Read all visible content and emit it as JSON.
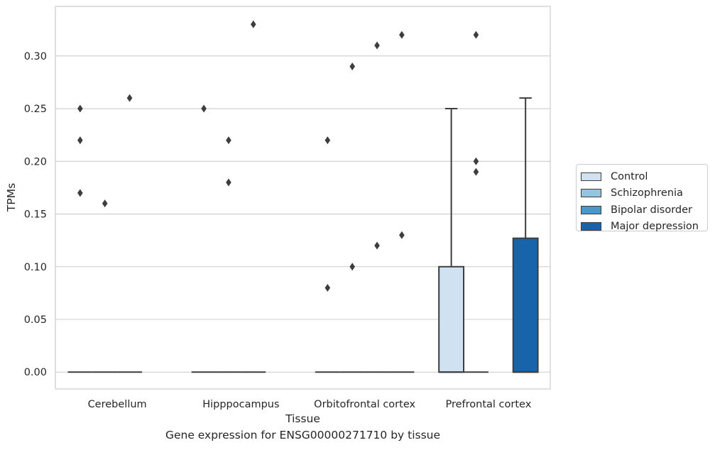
{
  "chart_data": {
    "type": "box",
    "xlabel": "Tissue",
    "ylabel": "TPMs",
    "caption": "Gene expression for ENSG00000271710 by tissue",
    "categories": [
      "Cerebellum",
      "Hipppocampus",
      "Orbitofrontal cortex",
      "Prefrontal cortex"
    ],
    "ylim": [
      -0.016,
      0.347
    ],
    "yticks": [
      0.0,
      0.05,
      0.1,
      0.15,
      0.2,
      0.25,
      0.3
    ],
    "ytick_labels": [
      "0.00",
      "0.05",
      "0.10",
      "0.15",
      "0.20",
      "0.25",
      "0.30"
    ],
    "grid": "y",
    "legend_position": "right",
    "series": [
      {
        "name": "Control",
        "color": "#d0e1f2",
        "boxes": [
          {
            "q1": 0,
            "median": 0,
            "q3": 0,
            "whisker_low": 0,
            "whisker_high": 0,
            "outliers": [
              0.25,
              0.22,
              0.17
            ]
          },
          {
            "q1": 0,
            "median": 0,
            "q3": 0,
            "whisker_low": 0,
            "whisker_high": 0,
            "outliers": [
              0.25
            ]
          },
          {
            "q1": 0,
            "median": 0,
            "q3": 0,
            "whisker_low": 0,
            "whisker_high": 0,
            "outliers": [
              0.22,
              0.08
            ]
          },
          {
            "q1": 0,
            "median": 0,
            "q3": 0.1,
            "whisker_low": 0,
            "whisker_high": 0.25,
            "outliers": []
          }
        ]
      },
      {
        "name": "Schizophrenia",
        "color": "#94c4df",
        "boxes": [
          {
            "q1": 0,
            "median": 0,
            "q3": 0,
            "whisker_low": 0,
            "whisker_high": 0,
            "outliers": [
              0.16
            ]
          },
          {
            "q1": 0,
            "median": 0,
            "q3": 0,
            "whisker_low": 0,
            "whisker_high": 0,
            "outliers": [
              0.22,
              0.18
            ]
          },
          {
            "q1": 0,
            "median": 0,
            "q3": 0,
            "whisker_low": 0,
            "whisker_high": 0,
            "outliers": [
              0.29,
              0.1
            ]
          },
          {
            "q1": 0,
            "median": 0,
            "q3": 0,
            "whisker_low": 0,
            "whisker_high": 0,
            "outliers": [
              0.32,
              0.2,
              0.19
            ]
          }
        ]
      },
      {
        "name": "Bipolar disorder",
        "color": "#4a98c9",
        "boxes": [
          {
            "q1": 0,
            "median": 0,
            "q3": 0,
            "whisker_low": 0,
            "whisker_high": 0,
            "outliers": [
              0.26
            ]
          },
          {
            "q1": 0,
            "median": 0,
            "q3": 0,
            "whisker_low": 0,
            "whisker_high": 0,
            "outliers": [
              0.33
            ]
          },
          {
            "q1": 0,
            "median": 0,
            "q3": 0,
            "whisker_low": 0,
            "whisker_high": 0,
            "outliers": [
              0.31,
              0.12
            ]
          },
          null
        ]
      },
      {
        "name": "Major depression",
        "color": "#1764ab",
        "boxes": [
          null,
          null,
          {
            "q1": 0,
            "median": 0,
            "q3": 0,
            "whisker_low": 0,
            "whisker_high": 0,
            "outliers": [
              0.32,
              0.13
            ]
          },
          {
            "q1": 0,
            "median": 0,
            "q3": 0.127,
            "whisker_low": 0,
            "whisker_high": 0.26,
            "outliers": []
          }
        ]
      }
    ]
  }
}
